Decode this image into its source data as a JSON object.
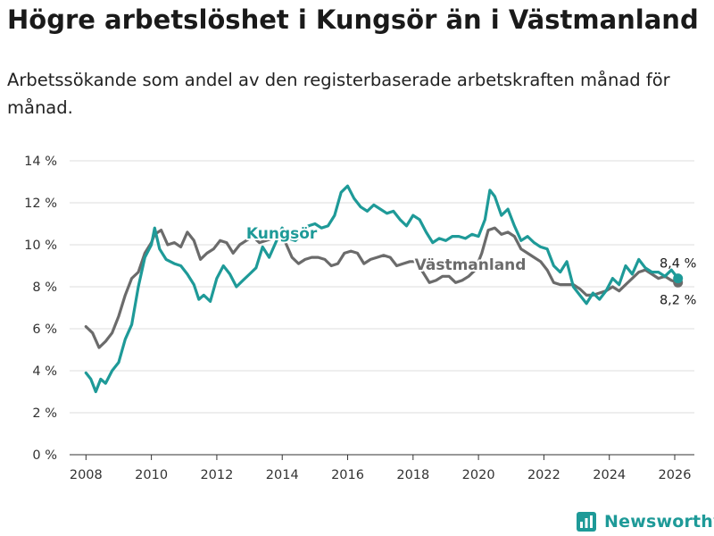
{
  "header": {
    "title": "Högre arbetslöshet i Kungsör än i Västmanland",
    "subtitle": "Arbetssökande som andel av den registerbaserade arbetskraften månad för månad."
  },
  "brand": {
    "name": "Newsworthy",
    "icon": "bar-chart-icon",
    "color": "#1e9a98"
  },
  "chart_data": {
    "type": "line",
    "title": "Högre arbetslöshet i Kungsör än i Västmanland",
    "xlabel": "",
    "ylabel": "",
    "xlim": [
      2007.5,
      2026.6
    ],
    "ylim": [
      0,
      14
    ],
    "x_ticks": [
      2008,
      2010,
      2012,
      2014,
      2016,
      2018,
      2020,
      2022,
      2024,
      2026
    ],
    "x_tick_labels": [
      "2008",
      "2010",
      "2012",
      "2014",
      "2016",
      "2018",
      "2020",
      "2022",
      "2024",
      "2026"
    ],
    "y_ticks": [
      0,
      2,
      4,
      6,
      8,
      10,
      12,
      14
    ],
    "y_tick_labels": [
      "0 %",
      "2 %",
      "4 %",
      "6 %",
      "8 %",
      "10 %",
      "12 %",
      "14 %"
    ],
    "grid": true,
    "series": [
      {
        "name": "Västmanland",
        "label": "Västmanland",
        "color": "#6b6b6b",
        "end_value": 8.2,
        "end_label": "8,2 %",
        "points": [
          [
            2008.0,
            6.1
          ],
          [
            2008.2,
            5.8
          ],
          [
            2008.4,
            5.1
          ],
          [
            2008.6,
            5.4
          ],
          [
            2008.8,
            5.8
          ],
          [
            2009.0,
            6.6
          ],
          [
            2009.2,
            7.6
          ],
          [
            2009.4,
            8.4
          ],
          [
            2009.6,
            8.7
          ],
          [
            2009.8,
            9.6
          ],
          [
            2010.0,
            10.1
          ],
          [
            2010.1,
            10.5
          ],
          [
            2010.3,
            10.7
          ],
          [
            2010.5,
            10.0
          ],
          [
            2010.7,
            10.1
          ],
          [
            2010.9,
            9.9
          ],
          [
            2011.1,
            10.6
          ],
          [
            2011.3,
            10.2
          ],
          [
            2011.5,
            9.3
          ],
          [
            2011.7,
            9.6
          ],
          [
            2011.9,
            9.8
          ],
          [
            2012.1,
            10.2
          ],
          [
            2012.3,
            10.1
          ],
          [
            2012.5,
            9.6
          ],
          [
            2012.7,
            10.0
          ],
          [
            2012.9,
            10.2
          ],
          [
            2013.1,
            10.4
          ],
          [
            2013.3,
            10.1
          ],
          [
            2013.5,
            10.2
          ],
          [
            2013.7,
            10.3
          ],
          [
            2013.9,
            10.4
          ],
          [
            2014.1,
            10.1
          ],
          [
            2014.3,
            9.4
          ],
          [
            2014.5,
            9.1
          ],
          [
            2014.7,
            9.3
          ],
          [
            2014.9,
            9.4
          ],
          [
            2015.1,
            9.4
          ],
          [
            2015.3,
            9.3
          ],
          [
            2015.5,
            9.0
          ],
          [
            2015.7,
            9.1
          ],
          [
            2015.9,
            9.6
          ],
          [
            2016.1,
            9.7
          ],
          [
            2016.3,
            9.6
          ],
          [
            2016.5,
            9.1
          ],
          [
            2016.7,
            9.3
          ],
          [
            2016.9,
            9.4
          ],
          [
            2017.1,
            9.5
          ],
          [
            2017.3,
            9.4
          ],
          [
            2017.5,
            9.0
          ],
          [
            2017.7,
            9.1
          ],
          [
            2017.9,
            9.2
          ],
          [
            2018.1,
            9.2
          ],
          [
            2018.3,
            8.7
          ],
          [
            2018.5,
            8.2
          ],
          [
            2018.7,
            8.3
          ],
          [
            2018.9,
            8.5
          ],
          [
            2019.1,
            8.5
          ],
          [
            2019.3,
            8.2
          ],
          [
            2019.5,
            8.3
          ],
          [
            2019.7,
            8.5
          ],
          [
            2019.9,
            8.8
          ],
          [
            2020.1,
            9.6
          ],
          [
            2020.3,
            10.7
          ],
          [
            2020.5,
            10.8
          ],
          [
            2020.7,
            10.5
          ],
          [
            2020.9,
            10.6
          ],
          [
            2021.1,
            10.4
          ],
          [
            2021.3,
            9.8
          ],
          [
            2021.5,
            9.6
          ],
          [
            2021.7,
            9.4
          ],
          [
            2021.9,
            9.2
          ],
          [
            2022.1,
            8.8
          ],
          [
            2022.3,
            8.2
          ],
          [
            2022.5,
            8.1
          ],
          [
            2022.7,
            8.1
          ],
          [
            2022.9,
            8.1
          ],
          [
            2023.1,
            7.9
          ],
          [
            2023.3,
            7.6
          ],
          [
            2023.5,
            7.6
          ],
          [
            2023.7,
            7.7
          ],
          [
            2023.9,
            7.8
          ],
          [
            2024.1,
            8.0
          ],
          [
            2024.3,
            7.8
          ],
          [
            2024.5,
            8.1
          ],
          [
            2024.7,
            8.4
          ],
          [
            2024.9,
            8.7
          ],
          [
            2025.1,
            8.8
          ],
          [
            2025.3,
            8.6
          ],
          [
            2025.5,
            8.4
          ],
          [
            2025.7,
            8.5
          ],
          [
            2025.9,
            8.3
          ],
          [
            2026.1,
            8.2
          ]
        ]
      },
      {
        "name": "Kungsör",
        "label": "Kungsör",
        "color": "#1e9a98",
        "end_value": 8.4,
        "end_label": "8,4 %",
        "points": [
          [
            2008.0,
            3.9
          ],
          [
            2008.15,
            3.6
          ],
          [
            2008.3,
            3.0
          ],
          [
            2008.45,
            3.6
          ],
          [
            2008.6,
            3.4
          ],
          [
            2008.8,
            4.0
          ],
          [
            2009.0,
            4.4
          ],
          [
            2009.2,
            5.5
          ],
          [
            2009.4,
            6.2
          ],
          [
            2009.6,
            8.0
          ],
          [
            2009.8,
            9.4
          ],
          [
            2010.0,
            10.0
          ],
          [
            2010.1,
            10.8
          ],
          [
            2010.25,
            9.8
          ],
          [
            2010.45,
            9.3
          ],
          [
            2010.7,
            9.1
          ],
          [
            2010.9,
            9.0
          ],
          [
            2011.1,
            8.6
          ],
          [
            2011.3,
            8.1
          ],
          [
            2011.45,
            7.4
          ],
          [
            2011.6,
            7.6
          ],
          [
            2011.8,
            7.3
          ],
          [
            2012.0,
            8.4
          ],
          [
            2012.2,
            9.0
          ],
          [
            2012.4,
            8.6
          ],
          [
            2012.6,
            8.0
          ],
          [
            2012.8,
            8.3
          ],
          [
            2013.0,
            8.6
          ],
          [
            2013.2,
            8.9
          ],
          [
            2013.4,
            9.9
          ],
          [
            2013.6,
            9.4
          ],
          [
            2013.8,
            10.1
          ],
          [
            2014.0,
            10.8
          ],
          [
            2014.2,
            10.3
          ],
          [
            2014.4,
            10.2
          ],
          [
            2014.6,
            10.5
          ],
          [
            2014.8,
            10.9
          ],
          [
            2015.0,
            11.0
          ],
          [
            2015.2,
            10.8
          ],
          [
            2015.4,
            10.9
          ],
          [
            2015.6,
            11.4
          ],
          [
            2015.8,
            12.5
          ],
          [
            2016.0,
            12.8
          ],
          [
            2016.2,
            12.2
          ],
          [
            2016.4,
            11.8
          ],
          [
            2016.6,
            11.6
          ],
          [
            2016.8,
            11.9
          ],
          [
            2017.0,
            11.7
          ],
          [
            2017.2,
            11.5
          ],
          [
            2017.4,
            11.6
          ],
          [
            2017.6,
            11.2
          ],
          [
            2017.8,
            10.9
          ],
          [
            2018.0,
            11.4
          ],
          [
            2018.2,
            11.2
          ],
          [
            2018.4,
            10.6
          ],
          [
            2018.6,
            10.1
          ],
          [
            2018.8,
            10.3
          ],
          [
            2019.0,
            10.2
          ],
          [
            2019.2,
            10.4
          ],
          [
            2019.4,
            10.4
          ],
          [
            2019.6,
            10.3
          ],
          [
            2019.8,
            10.5
          ],
          [
            2020.0,
            10.4
          ],
          [
            2020.2,
            11.2
          ],
          [
            2020.35,
            12.6
          ],
          [
            2020.5,
            12.3
          ],
          [
            2020.7,
            11.4
          ],
          [
            2020.9,
            11.7
          ],
          [
            2021.1,
            10.9
          ],
          [
            2021.3,
            10.2
          ],
          [
            2021.5,
            10.4
          ],
          [
            2021.7,
            10.1
          ],
          [
            2021.9,
            9.9
          ],
          [
            2022.1,
            9.8
          ],
          [
            2022.3,
            9.0
          ],
          [
            2022.5,
            8.7
          ],
          [
            2022.7,
            9.2
          ],
          [
            2022.9,
            8.0
          ],
          [
            2023.1,
            7.6
          ],
          [
            2023.3,
            7.2
          ],
          [
            2023.5,
            7.7
          ],
          [
            2023.7,
            7.4
          ],
          [
            2023.9,
            7.8
          ],
          [
            2024.1,
            8.4
          ],
          [
            2024.3,
            8.1
          ],
          [
            2024.5,
            9.0
          ],
          [
            2024.7,
            8.6
          ],
          [
            2024.9,
            9.3
          ],
          [
            2025.1,
            8.9
          ],
          [
            2025.3,
            8.7
          ],
          [
            2025.5,
            8.7
          ],
          [
            2025.7,
            8.5
          ],
          [
            2025.9,
            8.8
          ],
          [
            2026.1,
            8.4
          ]
        ]
      }
    ]
  }
}
